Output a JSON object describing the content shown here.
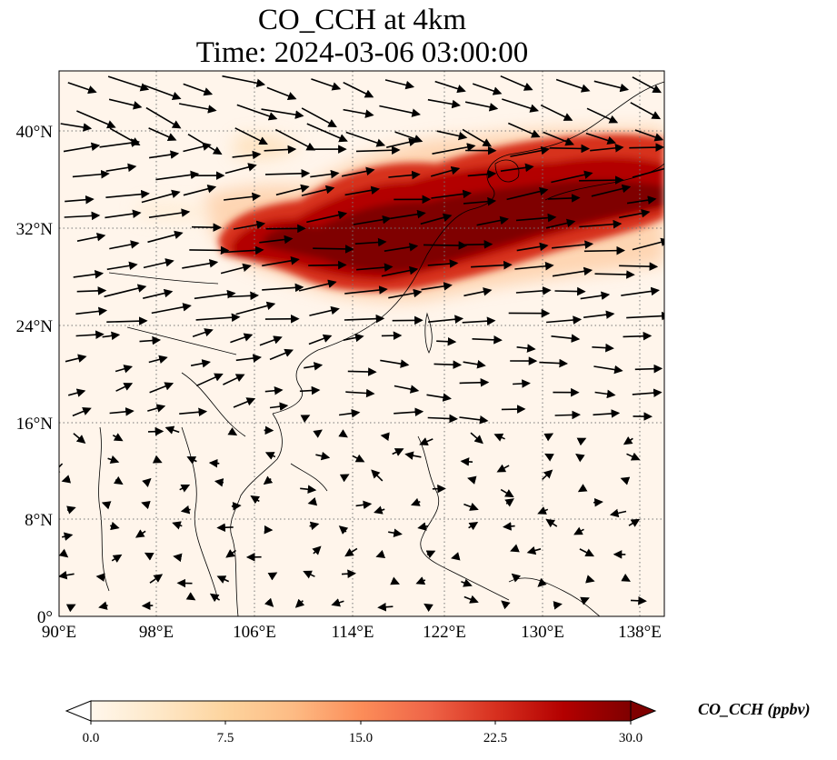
{
  "title": {
    "line1": "CO_CCH at 4km",
    "line2": "Time: 2024-03-06 03:00:00"
  },
  "map": {
    "lon_range": [
      90,
      139
    ],
    "lat_range": [
      0,
      45
    ],
    "lon_ticks": [
      "90°E",
      "98°E",
      "106°E",
      "114°E",
      "122°E",
      "130°E",
      "138°E"
    ],
    "lat_ticks": [
      "0°",
      "8°N",
      "16°N",
      "24°N",
      "32°N",
      "40°N"
    ],
    "gridlines": "dotted",
    "background_color": "#fff5eb",
    "plume_color": "#7f0000"
  },
  "colorbar": {
    "label": "CO_CCH (ppbv)",
    "ticks": [
      "0.0",
      "7.5",
      "15.0",
      "22.5",
      "30.0"
    ],
    "range": [
      0,
      30
    ],
    "colormap": "OrRd",
    "colors": [
      "#fff7ec",
      "#fee8c8",
      "#fdd49e",
      "#fdbb84",
      "#fc8d59",
      "#ef6548",
      "#d7301f",
      "#b30000",
      "#7f0000"
    ],
    "extend": "both"
  },
  "wind_vectors": "black arrows, westerly flow north of 20°N, weak and variable south of 16°N"
}
